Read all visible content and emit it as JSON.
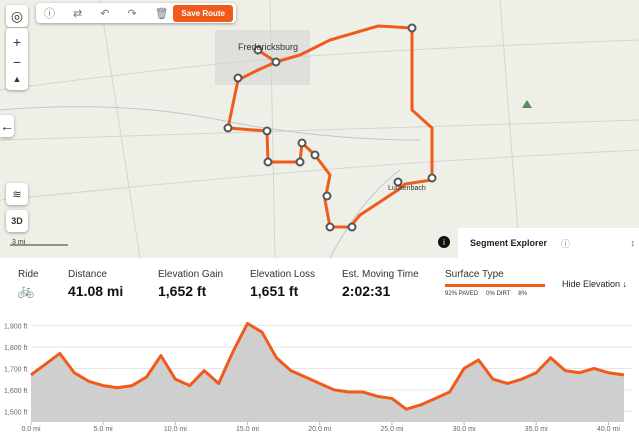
{
  "toolbar": {
    "save": "Save Route"
  },
  "map": {
    "town1": "Fredericksburg",
    "town2": "Luckenbach",
    "scale": "3 mi",
    "view3d": "3D"
  },
  "panel": {
    "title": "Segment Explorer"
  },
  "stats": {
    "ride": "Ride",
    "distance_label": "Distance",
    "distance": "41.08 mi",
    "gain_label": "Elevation Gain",
    "gain": "1,652 ft",
    "loss_label": "Elevation Loss",
    "loss": "1,651 ft",
    "time_label": "Est. Moving Time",
    "time": "2:02:31",
    "surface_label": "Surface Type",
    "paved": "92% PAVED",
    "dirt": "0% DIRT",
    "other": "8%",
    "hide": "Hide Elevation"
  },
  "chart_data": {
    "type": "area",
    "color": "#f05a1a",
    "x": [
      0,
      1,
      2,
      3,
      4,
      5,
      6,
      7,
      8,
      9,
      10,
      11,
      12,
      13,
      14,
      15,
      16,
      17,
      18,
      19,
      20,
      21,
      22,
      23,
      24,
      25,
      26,
      27,
      28,
      29,
      30,
      31,
      32,
      33,
      34,
      35,
      36,
      37,
      38,
      39,
      40,
      41.08
    ],
    "values": [
      1670,
      1720,
      1770,
      1680,
      1640,
      1620,
      1610,
      1620,
      1660,
      1760,
      1650,
      1620,
      1690,
      1630,
      1780,
      1910,
      1870,
      1750,
      1690,
      1660,
      1630,
      1600,
      1590,
      1590,
      1570,
      1560,
      1510,
      1530,
      1560,
      1590,
      1700,
      1740,
      1650,
      1630,
      1650,
      1680,
      1750,
      1690,
      1680,
      1700,
      1680,
      1670
    ],
    "xlim": [
      0,
      41.08
    ],
    "ylim": [
      1450,
      1945
    ],
    "xticks": [
      {
        "value": 0,
        "label": "0.0 mi"
      },
      {
        "value": 5,
        "label": "5.0 mi"
      },
      {
        "value": 10,
        "label": "10.0 mi"
      },
      {
        "value": 15,
        "label": "15.0 mi"
      },
      {
        "value": 20,
        "label": "20.0 mi"
      },
      {
        "value": 25,
        "label": "25.0 mi"
      },
      {
        "value": 30,
        "label": "30.0 mi"
      },
      {
        "value": 35,
        "label": "35.0 mi"
      },
      {
        "value": 40,
        "label": "40.0 mi"
      }
    ],
    "yticks": [
      {
        "value": 1500,
        "label": "1,500 ft"
      },
      {
        "value": 1600,
        "label": "1,600 ft"
      },
      {
        "value": 1700,
        "label": "1,700 ft"
      },
      {
        "value": 1800,
        "label": "1,800 ft"
      },
      {
        "value": 1900,
        "label": "1,900 ft"
      }
    ],
    "grid": true
  }
}
